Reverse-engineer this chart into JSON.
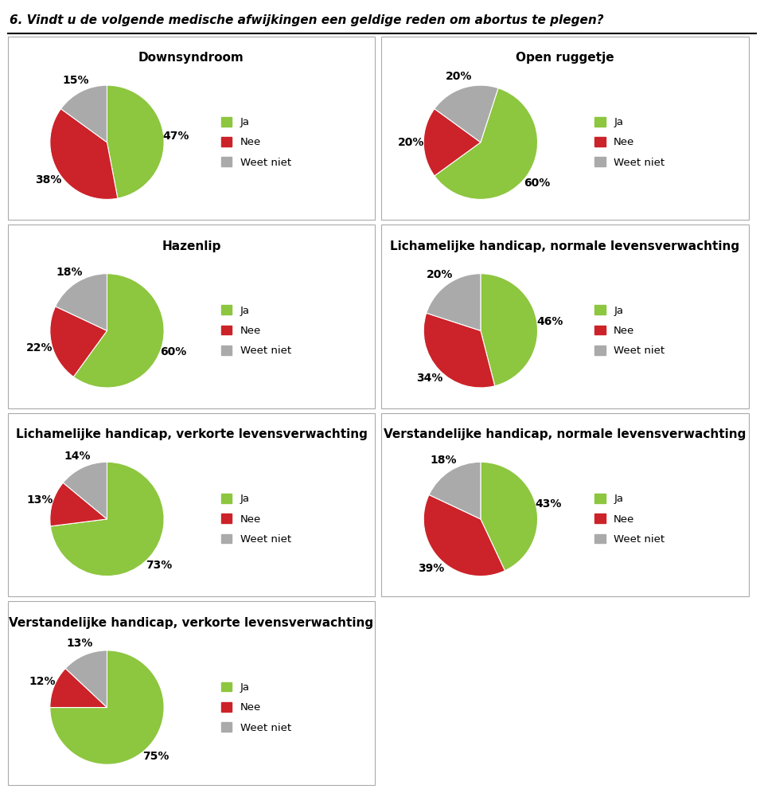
{
  "title": "6. Vindt u de volgende medische afwijkingen een geldige reden om abortus te plegen?",
  "charts": [
    {
      "title": "Downsyndroom",
      "values": [
        47,
        38,
        15
      ],
      "labels": [
        "47%",
        "38%",
        "15%"
      ],
      "startangle": 90
    },
    {
      "title": "Open ruggetje",
      "values": [
        60,
        20,
        20
      ],
      "labels": [
        "60%",
        "20%",
        "20%"
      ],
      "startangle": 72
    },
    {
      "title": "Hazenlip",
      "values": [
        60,
        22,
        18
      ],
      "labels": [
        "60%",
        "22%",
        "18%"
      ],
      "startangle": 90
    },
    {
      "title": "Lichamelijke handicap, normale levensverwachting",
      "values": [
        46,
        34,
        20
      ],
      "labels": [
        "46%",
        "34%",
        "20%"
      ],
      "startangle": 90
    },
    {
      "title": "Lichamelijke handicap, verkorte levensverwachting",
      "values": [
        73,
        13,
        14
      ],
      "labels": [
        "73%",
        "13%",
        "14%"
      ],
      "startangle": 90
    },
    {
      "title": "Verstandelijke handicap, normale levensverwachting",
      "values": [
        43,
        39,
        18
      ],
      "labels": [
        "43%",
        "39%",
        "18%"
      ],
      "startangle": 90
    },
    {
      "title": "Verstandelijke handicap, verkorte levensverwachting",
      "values": [
        75,
        12,
        13
      ],
      "labels": [
        "75%",
        "12%",
        "13%"
      ],
      "startangle": 90
    }
  ],
  "colors": [
    "#8dc63f",
    "#cc2229",
    "#aaaaaa"
  ],
  "legend_labels": [
    "Ja",
    "Nee",
    "Weet niet"
  ],
  "background_color": "#ffffff",
  "border_color": "#aaaaaa",
  "title_fontsize": 11,
  "label_fontsize": 10,
  "chart_title_fontsize": 11,
  "legend_fontsize": 9.5
}
